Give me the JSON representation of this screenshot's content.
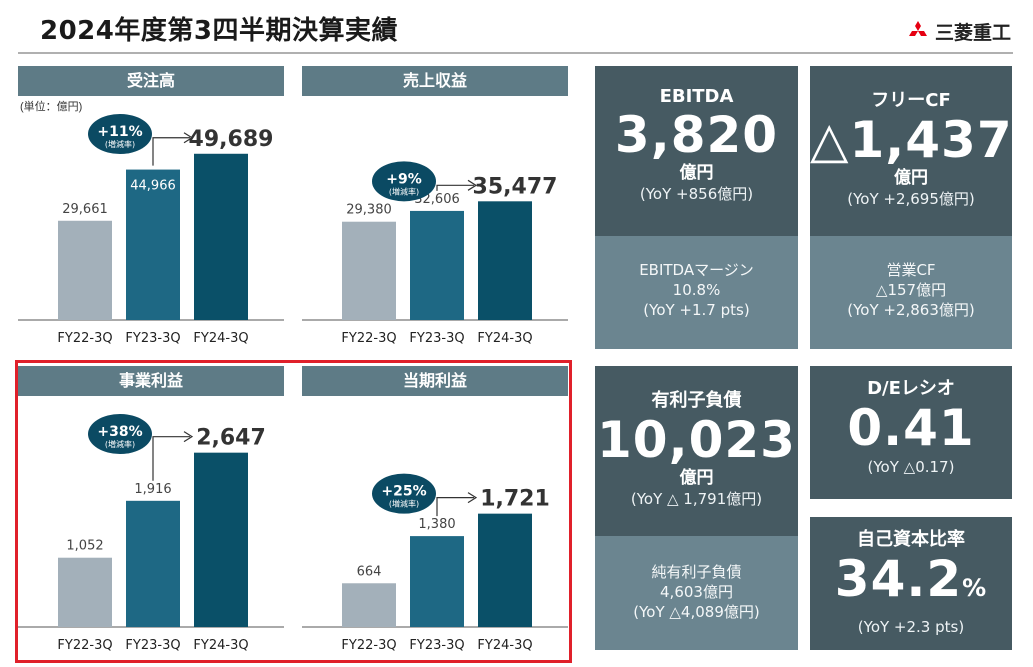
{
  "title": "2024年度第3四半期決算実績",
  "company": "三菱重工",
  "unit_note": "(単位：億円)",
  "chart_data": [
    {
      "type": "bar",
      "title": "受注高",
      "categories": [
        "FY22-3Q",
        "FY23-3Q",
        "FY24-3Q"
      ],
      "values": [
        29661,
        44966,
        49689
      ],
      "labels": [
        "29,661",
        "44,966",
        "49,689"
      ],
      "growth": "+11%",
      "growth_caption": "(増減率)",
      "ylim": [
        0,
        55000
      ],
      "colors": [
        "#a3b0ba",
        "#1e6884",
        "#0a5068"
      ]
    },
    {
      "type": "bar",
      "title": "売上収益",
      "categories": [
        "FY22-3Q",
        "FY23-3Q",
        "FY24-3Q"
      ],
      "values": [
        29380,
        32606,
        35477
      ],
      "labels": [
        "29,380",
        "32,606",
        "35,477"
      ],
      "growth": "+9%",
      "growth_caption": "(増減率)",
      "ylim": [
        0,
        55000
      ],
      "colors": [
        "#a3b0ba",
        "#1e6884",
        "#0a5068"
      ]
    },
    {
      "type": "bar",
      "title": "事業利益",
      "categories": [
        "FY22-3Q",
        "FY23-3Q",
        "FY24-3Q"
      ],
      "values": [
        1052,
        1916,
        2647
      ],
      "labels": [
        "1,052",
        "1,916",
        "2,647"
      ],
      "growth": "+38%",
      "growth_caption": "(増減率)",
      "ylim": [
        0,
        2900
      ],
      "colors": [
        "#a3b0ba",
        "#1e6884",
        "#0a5068"
      ]
    },
    {
      "type": "bar",
      "title": "当期利益",
      "categories": [
        "FY22-3Q",
        "FY23-3Q",
        "FY24-3Q"
      ],
      "values": [
        664,
        1380,
        1721
      ],
      "labels": [
        "664",
        "1,380",
        "1,721"
      ],
      "growth": "+25%",
      "growth_caption": "(増減率)",
      "ylim": [
        0,
        2900
      ],
      "colors": [
        "#a3b0ba",
        "#1e6884",
        "#0a5068"
      ]
    }
  ],
  "kpis": {
    "ebitda": {
      "label": "EBITDA",
      "value": "3,820",
      "unit": "億円",
      "yoy": "(YoY +856億円)",
      "sub1": "EBITDAマージン",
      "sub2": "10.8%",
      "sub3": "(YoY +1.7 pts)"
    },
    "fcf": {
      "label": "フリーCF",
      "value": "△1,437",
      "unit": "億円",
      "yoy": "(YoY +2,695億円)",
      "sub1": "営業CF",
      "sub2": "△157億円",
      "sub3": "(YoY +2,863億円)"
    },
    "debt": {
      "label": "有利子負債",
      "value": "10,023",
      "unit": "億円",
      "yoy": "(YoY △ 1,791億円)",
      "sub1": "純有利子負債",
      "sub2": "4,603億円",
      "sub3": "(YoY △4,089億円)"
    },
    "de": {
      "label": "D/Eレシオ",
      "value": "0.41",
      "yoy": "(YoY △0.17)"
    },
    "equity": {
      "label": "自己資本比率",
      "value": "34.2",
      "pct": "%",
      "yoy": "(YoY +2.3 pts)"
    }
  }
}
